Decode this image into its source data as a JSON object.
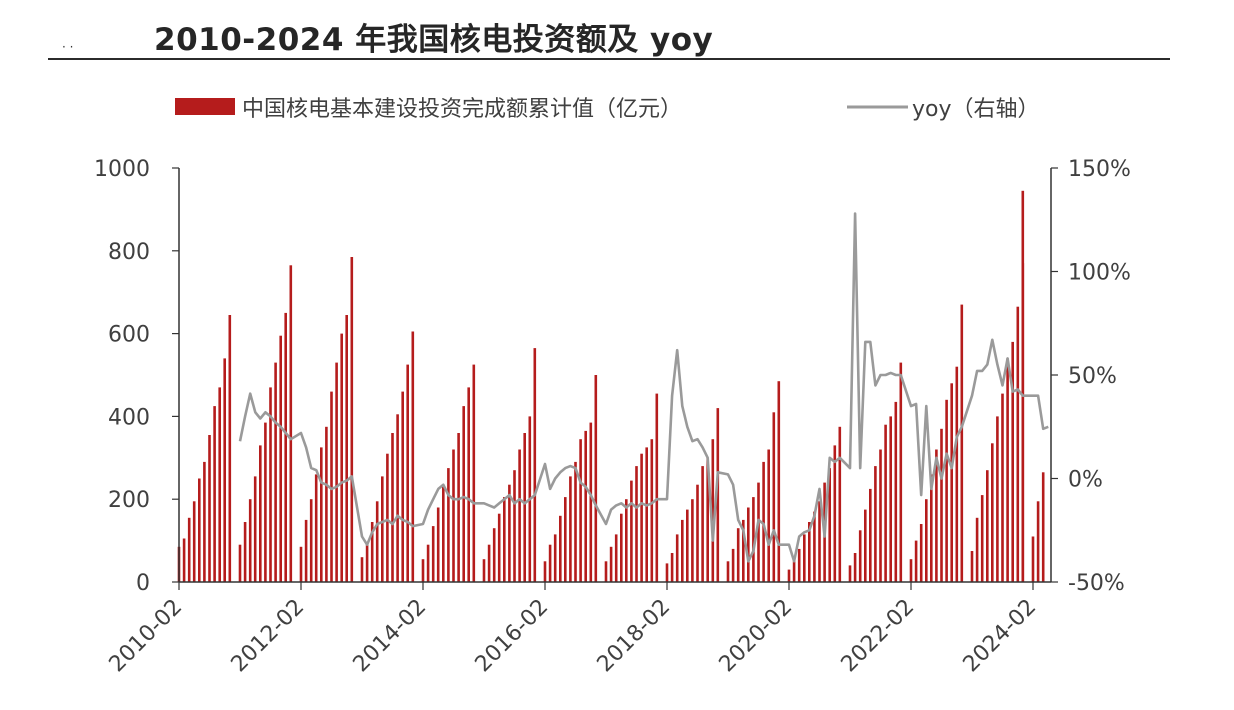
{
  "title": "2010-2024 年我国核电投资额及 yoy",
  "colors": {
    "bar": "#b51c1c",
    "line": "#9a9a9a",
    "axis": "#333333",
    "text": "#404040"
  },
  "chart_data": {
    "type": "bar+line",
    "title": "2010-2024 年我国核电投资额及 yoy",
    "x_tick_labels": [
      "2010-02",
      "2012-02",
      "2014-02",
      "2016-02",
      "2018-02",
      "2020-02",
      "2022-02",
      "2024-02"
    ],
    "y_left": {
      "ylim": [
        0,
        1000
      ],
      "ticks": [
        "0",
        "200",
        "400",
        "600",
        "800",
        "1000"
      ]
    },
    "y_right": {
      "ylim": [
        -50,
        150
      ],
      "ticks": [
        "-50%",
        "0%",
        "50%",
        "100%",
        "150%"
      ]
    },
    "legend": [
      {
        "name": "中国核电基本建设投资完成额累计值（亿元）",
        "kind": "bar"
      },
      {
        "name": "yoy（右轴）",
        "kind": "line"
      }
    ],
    "series": [
      {
        "name": "中国核电基本建设投资完成额累计值（亿元）",
        "axis": "left",
        "yearly_feb_to_dec": [
          [
            85,
            105,
            155,
            195,
            250,
            290,
            355,
            425,
            470,
            540,
            645
          ],
          [
            90,
            145,
            200,
            255,
            330,
            385,
            470,
            530,
            595,
            650,
            765
          ],
          [
            85,
            150,
            200,
            260,
            325,
            375,
            460,
            530,
            600,
            645,
            785
          ],
          [
            60,
            90,
            145,
            195,
            255,
            310,
            360,
            405,
            460,
            525,
            605
          ],
          [
            55,
            90,
            135,
            180,
            230,
            275,
            320,
            360,
            425,
            470,
            525
          ],
          [
            55,
            90,
            130,
            165,
            205,
            235,
            270,
            320,
            360,
            400,
            565
          ],
          [
            50,
            90,
            115,
            160,
            205,
            255,
            290,
            345,
            365,
            385,
            500
          ],
          [
            50,
            85,
            115,
            165,
            200,
            245,
            280,
            310,
            325,
            345,
            455
          ],
          [
            45,
            70,
            115,
            150,
            175,
            200,
            235,
            280,
            300,
            345,
            420
          ],
          [
            50,
            80,
            130,
            150,
            180,
            205,
            240,
            290,
            320,
            410,
            485
          ],
          [
            30,
            50,
            80,
            115,
            145,
            170,
            195,
            240,
            275,
            330,
            375
          ],
          [
            40,
            70,
            125,
            175,
            225,
            280,
            320,
            380,
            400,
            435,
            530
          ],
          [
            55,
            100,
            140,
            200,
            260,
            320,
            370,
            440,
            480,
            520,
            670
          ],
          [
            75,
            155,
            210,
            270,
            335,
            400,
            455,
            540,
            580,
            665,
            770
          ]
        ],
        "extra_points": {
          "2023-12": 945,
          "2024-02": 110,
          "2024-03": 195,
          "2024-04": 265
        }
      },
      {
        "name": "yoy（右轴）",
        "axis": "right",
        "points": [
          [
            "2011-02",
            18
          ],
          [
            "2011-03",
            30
          ],
          [
            "2011-04",
            41
          ],
          [
            "2011-05",
            32
          ],
          [
            "2011-06",
            29
          ],
          [
            "2011-07",
            32
          ],
          [
            "2011-08",
            30
          ],
          [
            "2011-09",
            27
          ],
          [
            "2011-10",
            25
          ],
          [
            "2011-11",
            22
          ],
          [
            "2011-12",
            19
          ],
          [
            "2012-02",
            22
          ],
          [
            "2012-03",
            15
          ],
          [
            "2012-04",
            5
          ],
          [
            "2012-05",
            4
          ],
          [
            "2012-06",
            -2
          ],
          [
            "2012-07",
            -3
          ],
          [
            "2012-08",
            -5
          ],
          [
            "2012-09",
            -4
          ],
          [
            "2012-10",
            -2
          ],
          [
            "2012-11",
            -1
          ],
          [
            "2012-12",
            1
          ],
          [
            "2013-02",
            -28
          ],
          [
            "2013-03",
            -32
          ],
          [
            "2013-04",
            -26
          ],
          [
            "2013-05",
            -22
          ],
          [
            "2013-06",
            -21
          ],
          [
            "2013-07",
            -20
          ],
          [
            "2013-08",
            -22
          ],
          [
            "2013-09",
            -18
          ],
          [
            "2013-10",
            -20
          ],
          [
            "2013-11",
            -21
          ],
          [
            "2013-12",
            -23
          ],
          [
            "2014-02",
            -22
          ],
          [
            "2014-03",
            -15
          ],
          [
            "2014-04",
            -10
          ],
          [
            "2014-05",
            -5
          ],
          [
            "2014-06",
            -3
          ],
          [
            "2014-07",
            -8
          ],
          [
            "2014-08",
            -10
          ],
          [
            "2014-09",
            -10
          ],
          [
            "2014-10",
            -9
          ],
          [
            "2014-11",
            -10
          ],
          [
            "2014-12",
            -12
          ],
          [
            "2015-02",
            -12
          ],
          [
            "2015-03",
            -13
          ],
          [
            "2015-04",
            -14
          ],
          [
            "2015-05",
            -12
          ],
          [
            "2015-06",
            -10
          ],
          [
            "2015-07",
            -8
          ],
          [
            "2015-08",
            -12
          ],
          [
            "2015-09",
            -10
          ],
          [
            "2015-10",
            -12
          ],
          [
            "2015-11",
            -10
          ],
          [
            "2015-12",
            -8
          ],
          [
            "2016-02",
            7
          ],
          [
            "2016-03",
            -5
          ],
          [
            "2016-04",
            0
          ],
          [
            "2016-05",
            3
          ],
          [
            "2016-06",
            5
          ],
          [
            "2016-07",
            6
          ],
          [
            "2016-08",
            5
          ],
          [
            "2016-09",
            -2
          ],
          [
            "2016-10",
            -4
          ],
          [
            "2016-11",
            -8
          ],
          [
            "2016-12",
            -13
          ],
          [
            "2017-02",
            -22
          ],
          [
            "2017-03",
            -15
          ],
          [
            "2017-04",
            -13
          ],
          [
            "2017-05",
            -12
          ],
          [
            "2017-06",
            -14
          ],
          [
            "2017-07",
            -12
          ],
          [
            "2017-08",
            -14
          ],
          [
            "2017-09",
            -12
          ],
          [
            "2017-10",
            -13
          ],
          [
            "2017-11",
            -12
          ],
          [
            "2017-12",
            -10
          ],
          [
            "2018-02",
            -10
          ],
          [
            "2018-03",
            40
          ],
          [
            "2018-04",
            62
          ],
          [
            "2018-05",
            35
          ],
          [
            "2018-06",
            25
          ],
          [
            "2018-07",
            18
          ],
          [
            "2018-08",
            19
          ],
          [
            "2018-09",
            15
          ],
          [
            "2018-10",
            10
          ],
          [
            "2018-11",
            -30
          ],
          [
            "2018-12",
            3
          ],
          [
            "2019-02",
            2
          ],
          [
            "2019-03",
            -3
          ],
          [
            "2019-04",
            -20
          ],
          [
            "2019-05",
            -25
          ],
          [
            "2019-06",
            -40
          ],
          [
            "2019-07",
            -35
          ],
          [
            "2019-08",
            -20
          ],
          [
            "2019-09",
            -22
          ],
          [
            "2019-10",
            -32
          ],
          [
            "2019-11",
            -25
          ],
          [
            "2019-12",
            -32
          ],
          [
            "2020-02",
            -32
          ],
          [
            "2020-03",
            -40
          ],
          [
            "2020-04",
            -28
          ],
          [
            "2020-05",
            -26
          ],
          [
            "2020-06",
            -25
          ],
          [
            "2020-07",
            -18
          ],
          [
            "2020-08",
            -5
          ],
          [
            "2020-09",
            -28
          ],
          [
            "2020-10",
            10
          ],
          [
            "2020-11",
            8
          ],
          [
            "2020-12",
            10
          ],
          [
            "2021-02",
            5
          ],
          [
            "2021-03",
            128
          ],
          [
            "2021-04",
            5
          ],
          [
            "2021-05",
            66
          ],
          [
            "2021-06",
            66
          ],
          [
            "2021-07",
            45
          ],
          [
            "2021-08",
            50
          ],
          [
            "2021-09",
            50
          ],
          [
            "2021-10",
            51
          ],
          [
            "2021-11",
            50
          ],
          [
            "2021-12",
            50
          ],
          [
            "2022-02",
            35
          ],
          [
            "2022-03",
            36
          ],
          [
            "2022-04",
            -8
          ],
          [
            "2022-05",
            35
          ],
          [
            "2022-06",
            -5
          ],
          [
            "2022-07",
            10
          ],
          [
            "2022-08",
            0
          ],
          [
            "2022-09",
            12
          ],
          [
            "2022-10",
            5
          ],
          [
            "2022-11",
            20
          ],
          [
            "2022-12",
            25
          ],
          [
            "2023-02",
            40
          ],
          [
            "2023-03",
            52
          ],
          [
            "2023-04",
            52
          ],
          [
            "2023-05",
            55
          ],
          [
            "2023-06",
            67
          ],
          [
            "2023-07",
            55
          ],
          [
            "2023-08",
            45
          ],
          [
            "2023-09",
            58
          ],
          [
            "2023-10",
            42
          ],
          [
            "2023-11",
            43
          ],
          [
            "2023-12",
            40
          ],
          [
            "2024-02",
            40
          ],
          [
            "2024-03",
            40
          ],
          [
            "2024-04",
            24
          ],
          [
            "2024-05",
            25
          ]
        ]
      }
    ]
  }
}
